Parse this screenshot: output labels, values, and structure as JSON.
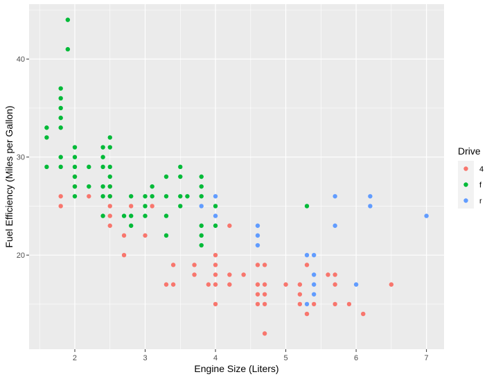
{
  "chart_data": {
    "type": "scatter",
    "title": "",
    "xlabel": "Engine Size (Liters)",
    "ylabel": "Fuel Efficiency (Miles per Gallon)",
    "xlim": [
      1.35,
      7.25
    ],
    "ylim": [
      10.4,
      45.6
    ],
    "x_ticks": [
      2,
      3,
      4,
      5,
      6,
      7
    ],
    "y_ticks": [
      20,
      30,
      40
    ],
    "grid": true,
    "panel_background": "#ebebeb",
    "legend": {
      "title": "Drive",
      "placement": "right",
      "entries": [
        {
          "label": "4",
          "color": "#f8766d"
        },
        {
          "label": "f",
          "color": "#00ba38"
        },
        {
          "label": "r",
          "color": "#619cff"
        }
      ]
    },
    "series": [
      {
        "name": "4",
        "color": "#f8766d",
        "points": [
          [
            1.8,
            26
          ],
          [
            1.8,
            25
          ],
          [
            2.0,
            28
          ],
          [
            2.0,
            27
          ],
          [
            2.2,
            26
          ],
          [
            2.5,
            27
          ],
          [
            2.5,
            26
          ],
          [
            2.5,
            25
          ],
          [
            2.5,
            24
          ],
          [
            2.5,
            23
          ],
          [
            2.8,
            25
          ],
          [
            2.7,
            22
          ],
          [
            2.7,
            20
          ],
          [
            3.0,
            22
          ],
          [
            3.1,
            25
          ],
          [
            3.3,
            17
          ],
          [
            3.4,
            17
          ],
          [
            3.4,
            19
          ],
          [
            3.7,
            19
          ],
          [
            3.7,
            18
          ],
          [
            3.9,
            17
          ],
          [
            4.0,
            20
          ],
          [
            4.0,
            19
          ],
          [
            4.0,
            18
          ],
          [
            4.0,
            17
          ],
          [
            4.0,
            15
          ],
          [
            4.2,
            23
          ],
          [
            4.2,
            18
          ],
          [
            4.2,
            17
          ],
          [
            4.4,
            18
          ],
          [
            4.6,
            19
          ],
          [
            4.6,
            17
          ],
          [
            4.6,
            16
          ],
          [
            4.6,
            15
          ],
          [
            4.7,
            19
          ],
          [
            4.7,
            17
          ],
          [
            4.7,
            16
          ],
          [
            4.7,
            15
          ],
          [
            4.7,
            12
          ],
          [
            5.0,
            17
          ],
          [
            5.2,
            17
          ],
          [
            5.2,
            16
          ],
          [
            5.2,
            15
          ],
          [
            5.3,
            19
          ],
          [
            5.3,
            14
          ],
          [
            5.4,
            15
          ],
          [
            5.6,
            18
          ],
          [
            5.7,
            18
          ],
          [
            5.7,
            17
          ],
          [
            5.7,
            15
          ],
          [
            5.9,
            15
          ],
          [
            6.1,
            14
          ],
          [
            6.5,
            17
          ]
        ]
      },
      {
        "name": "f",
        "color": "#00ba38",
        "points": [
          [
            1.6,
            33
          ],
          [
            1.6,
            32
          ],
          [
            1.6,
            29
          ],
          [
            1.8,
            37
          ],
          [
            1.8,
            36
          ],
          [
            1.8,
            35
          ],
          [
            1.8,
            34
          ],
          [
            1.8,
            33
          ],
          [
            1.8,
            30
          ],
          [
            1.8,
            29
          ],
          [
            1.9,
            44
          ],
          [
            1.9,
            41
          ],
          [
            2.0,
            31
          ],
          [
            2.0,
            30
          ],
          [
            2.0,
            29
          ],
          [
            2.0,
            28
          ],
          [
            2.0,
            27
          ],
          [
            2.0,
            26
          ],
          [
            2.2,
            29
          ],
          [
            2.2,
            27
          ],
          [
            2.4,
            31
          ],
          [
            2.4,
            30
          ],
          [
            2.4,
            29
          ],
          [
            2.4,
            27
          ],
          [
            2.4,
            26
          ],
          [
            2.4,
            24
          ],
          [
            2.5,
            32
          ],
          [
            2.5,
            31
          ],
          [
            2.5,
            29
          ],
          [
            2.5,
            28
          ],
          [
            2.5,
            27
          ],
          [
            2.5,
            26
          ],
          [
            2.7,
            24
          ],
          [
            2.8,
            26
          ],
          [
            2.8,
            24
          ],
          [
            2.8,
            23
          ],
          [
            3.0,
            26
          ],
          [
            3.0,
            25
          ],
          [
            3.0,
            24
          ],
          [
            3.1,
            27
          ],
          [
            3.1,
            26
          ],
          [
            3.3,
            28
          ],
          [
            3.3,
            26
          ],
          [
            3.3,
            24
          ],
          [
            3.3,
            22
          ],
          [
            3.5,
            29
          ],
          [
            3.5,
            28
          ],
          [
            3.5,
            26
          ],
          [
            3.5,
            25
          ],
          [
            3.6,
            26
          ],
          [
            3.8,
            28
          ],
          [
            3.8,
            27
          ],
          [
            3.8,
            26
          ],
          [
            3.8,
            23
          ],
          [
            3.8,
            22
          ],
          [
            3.8,
            21
          ],
          [
            4.0,
            25
          ],
          [
            4.0,
            23
          ],
          [
            5.3,
            25
          ]
        ]
      },
      {
        "name": "r",
        "color": "#619cff",
        "points": [
          [
            3.8,
            25
          ],
          [
            4.0,
            26
          ],
          [
            4.0,
            24
          ],
          [
            4.6,
            23
          ],
          [
            4.6,
            22
          ],
          [
            4.6,
            21
          ],
          [
            5.3,
            20
          ],
          [
            5.3,
            15
          ],
          [
            5.4,
            20
          ],
          [
            5.4,
            18
          ],
          [
            5.4,
            17
          ],
          [
            5.4,
            16
          ],
          [
            5.7,
            26
          ],
          [
            5.7,
            23
          ],
          [
            6.0,
            17
          ],
          [
            6.2,
            26
          ],
          [
            6.2,
            25
          ],
          [
            7.0,
            24
          ]
        ]
      }
    ]
  }
}
